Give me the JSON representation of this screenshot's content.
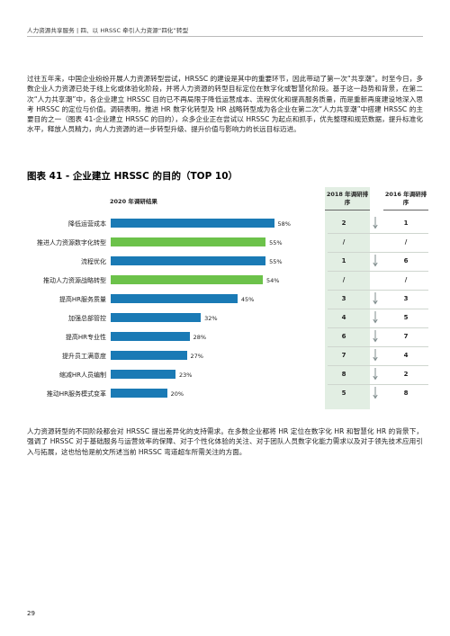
{
  "header": {
    "text": "人力资源共享服务 | 四、以 HRSSC 牵引人力资源“四化”转型"
  },
  "intro_paragraph": "过往五年来，中国企业纷纷开展人力资源转型尝试，HRSSC 的建设是其中的重要环节，因此带动了第一次“共享潮”。时至今日，多数企业人力资源已处于线上化或体验化阶段，并将人力资源的转型目标定位在数字化或智慧化阶段。基于这一趋势和背景，在第二次“人力共享潮”中，各企业建立 HRSSC 目的已不再局限于降低运营成本、流程优化和提高服务质量，而是重新再度建设地深入思考 HRSSC 的定位与价值。调研表明，推进 HR 数字化转型及 HR 战略转型成为各企业在第二次“人力共享潮”中搭建 HRSSC 的主要目的之一（图表 41-企业建立 HRSSC 的目的），众多企业正在尝试以 HRSSC 为起点和抓手，优先整理和规范数据，提升标准化水平，释放人员精力，向人力资源的进一步转型升级、提升价值与影响力的长远目标迈进。",
  "figure": {
    "title": "图表 41 - 企业建立 HRSSC 的目的（TOP 10）",
    "survey_label": "2020 年调研结果",
    "col_2018": "2018 年调研排序",
    "col_2016": "2016 年调研排序"
  },
  "chart_data": {
    "type": "bar",
    "orientation": "horizontal",
    "title": "图表 41 - 企业建立 HRSSC 的目的（TOP 10）",
    "series_label": "2020 年调研结果",
    "unit": "%",
    "xlim": [
      0,
      100
    ],
    "categories": [
      "降低运营成本",
      "推进人力资源数字化转型",
      "流程优化",
      "推动人力资源战略转型",
      "提高HR服务质量",
      "加强总部管控",
      "提高HR专业性",
      "提升员工满意度",
      "缩减HR人员编制",
      "推动HR服务模式变革"
    ],
    "values": [
      58,
      55,
      55,
      54,
      45,
      32,
      28,
      27,
      23,
      20
    ],
    "value_labels": [
      "58%",
      "55%",
      "55%",
      "54%",
      "45%",
      "32%",
      "28%",
      "27%",
      "23%",
      "20%"
    ],
    "highlight": [
      false,
      true,
      false,
      true,
      false,
      false,
      false,
      false,
      false,
      false
    ],
    "colors": {
      "default": "#1a7ab5",
      "highlight": "#6cc24a",
      "panel": "#e2eee3",
      "arrow": "#7f8c8d"
    },
    "rank_2018": [
      "2",
      "/",
      "1",
      "/",
      "3",
      "4",
      "6",
      "7",
      "8",
      "5"
    ],
    "rank_2016": [
      "1",
      "/",
      "6",
      "/",
      "3",
      "5",
      "7",
      "4",
      "2",
      "8"
    ],
    "trend_down": [
      true,
      false,
      true,
      false,
      true,
      true,
      true,
      true,
      true,
      true
    ],
    "grid": false,
    "legend": "none"
  },
  "outro_paragraph": "人力资源转型的不同阶段都会对 HRSSC 提出差异化的支持需求。在多数企业都将 HR 定位在数字化 HR 和智慧化 HR 的背景下，强调了 HRSSC 对于基础服务与运营效率的保障、对于个性化体验的关注、对于团队人员数字化能力需求以及对于领先技术应用引入与拓展，这也恰恰是前文所述当前 HRSSC 弯道超车所需关注的方面。",
  "page_number": "29"
}
